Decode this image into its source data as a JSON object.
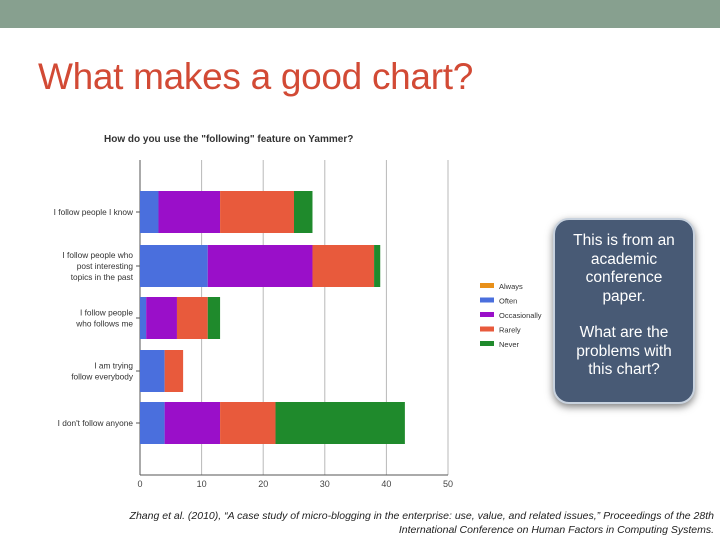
{
  "slide": {
    "title": "What makes a good chart?",
    "callout_line1": "This is from an academic conference paper.",
    "callout_line2": "What are the problems with this chart?",
    "citation_line1": "Zhang et al. (2010), “A case study of micro-blogging in the enterprise: use, value, and related issues,” Proceedings of the 28th",
    "citation_line2": "International Conference on Human Factors in Computing Systems.",
    "colors": {
      "title": "#d24a35",
      "top_bar": "#87a08f",
      "callout_bg": "#485a75"
    }
  },
  "chart_data": {
    "type": "bar",
    "orientation": "horizontal",
    "stacked": true,
    "title": "How do you use the \"following\" feature on Yammer?",
    "categories": [
      "I follow people I know",
      "I follow people who post interesting topics in the past",
      "I follow people who follows me",
      "I am trying follow everybody",
      "I don't follow anyone"
    ],
    "category_lines": [
      [
        "I follow people I know"
      ],
      [
        "I follow people who",
        "post interesting",
        "topics in the past"
      ],
      [
        "I follow people",
        "who follows me"
      ],
      [
        "I am trying",
        "follow everybody"
      ],
      [
        "I don't follow anyone"
      ]
    ],
    "series": [
      {
        "name": "Always",
        "color": "#e8901a",
        "values": [
          0,
          0,
          0,
          0,
          0
        ]
      },
      {
        "name": "Often",
        "color": "#4a6fdd",
        "values": [
          3,
          11,
          1,
          4,
          4
        ]
      },
      {
        "name": "Occasionally",
        "color": "#9a0fc9",
        "values": [
          10,
          17,
          5,
          0,
          9
        ]
      },
      {
        "name": "Rarely",
        "color": "#e85a3c",
        "values": [
          12,
          10,
          5,
          3,
          9
        ]
      },
      {
        "name": "Never",
        "color": "#1f8a2c",
        "values": [
          3,
          1,
          2,
          0,
          21
        ]
      }
    ],
    "xlim": [
      0,
      50
    ],
    "xticks": [
      0,
      10,
      20,
      30,
      40,
      50
    ],
    "grid": true,
    "legend": "right"
  }
}
